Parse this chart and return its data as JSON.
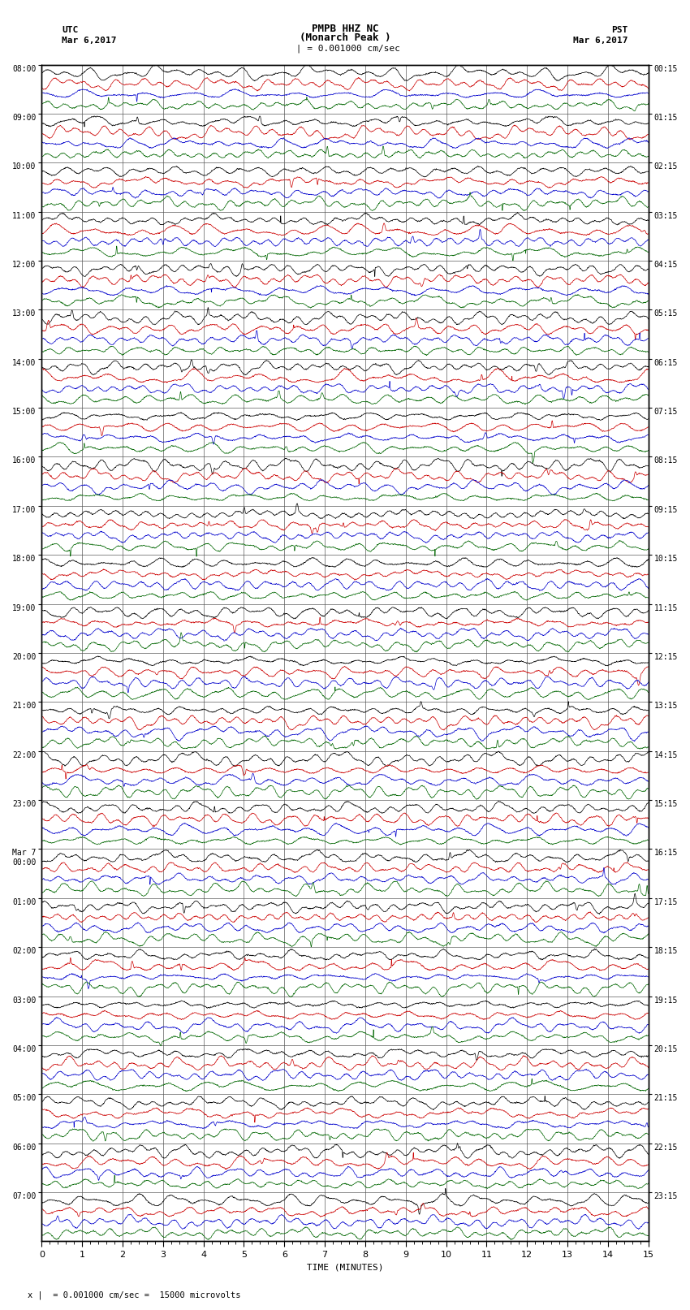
{
  "title_line1": "PMPB HHZ NC",
  "title_line2": "(Monarch Peak )",
  "scale_label": "= 0.001000 cm/sec",
  "scale_label2": "= 0.001000 cm/sec =  15000 microvolts",
  "utc_label": "UTC",
  "utc_date": "Mar 6,2017",
  "pst_label": "PST",
  "pst_date": "Mar 6,2017",
  "xlabel": "TIME (MINUTES)",
  "xmin": 0,
  "xmax": 15,
  "xticks": [
    0,
    1,
    2,
    3,
    4,
    5,
    6,
    7,
    8,
    9,
    10,
    11,
    12,
    13,
    14,
    15
  ],
  "background_color": "#ffffff",
  "trace_colors": [
    "#000000",
    "#cc0000",
    "#0000cc",
    "#006600"
  ],
  "traces_per_row": 4,
  "num_rows": 24,
  "utc_row_labels": [
    "08:00",
    "09:00",
    "10:00",
    "11:00",
    "12:00",
    "13:00",
    "14:00",
    "15:00",
    "16:00",
    "17:00",
    "18:00",
    "19:00",
    "20:00",
    "21:00",
    "22:00",
    "23:00",
    "00:00",
    "01:00",
    "02:00",
    "03:00",
    "04:00",
    "05:00",
    "06:00",
    "07:00"
  ],
  "mar7_row": 16,
  "pst_row_labels": [
    "00:15",
    "01:15",
    "02:15",
    "03:15",
    "04:15",
    "05:15",
    "06:15",
    "07:15",
    "08:15",
    "09:15",
    "10:15",
    "11:15",
    "12:15",
    "13:15",
    "14:15",
    "15:15",
    "16:15",
    "17:15",
    "18:15",
    "19:15",
    "20:15",
    "21:15",
    "22:15",
    "23:15"
  ],
  "grid_color": "#555555",
  "trace_amplitude": 0.12,
  "seed": 42,
  "minor_xtick_interval": 0.2
}
